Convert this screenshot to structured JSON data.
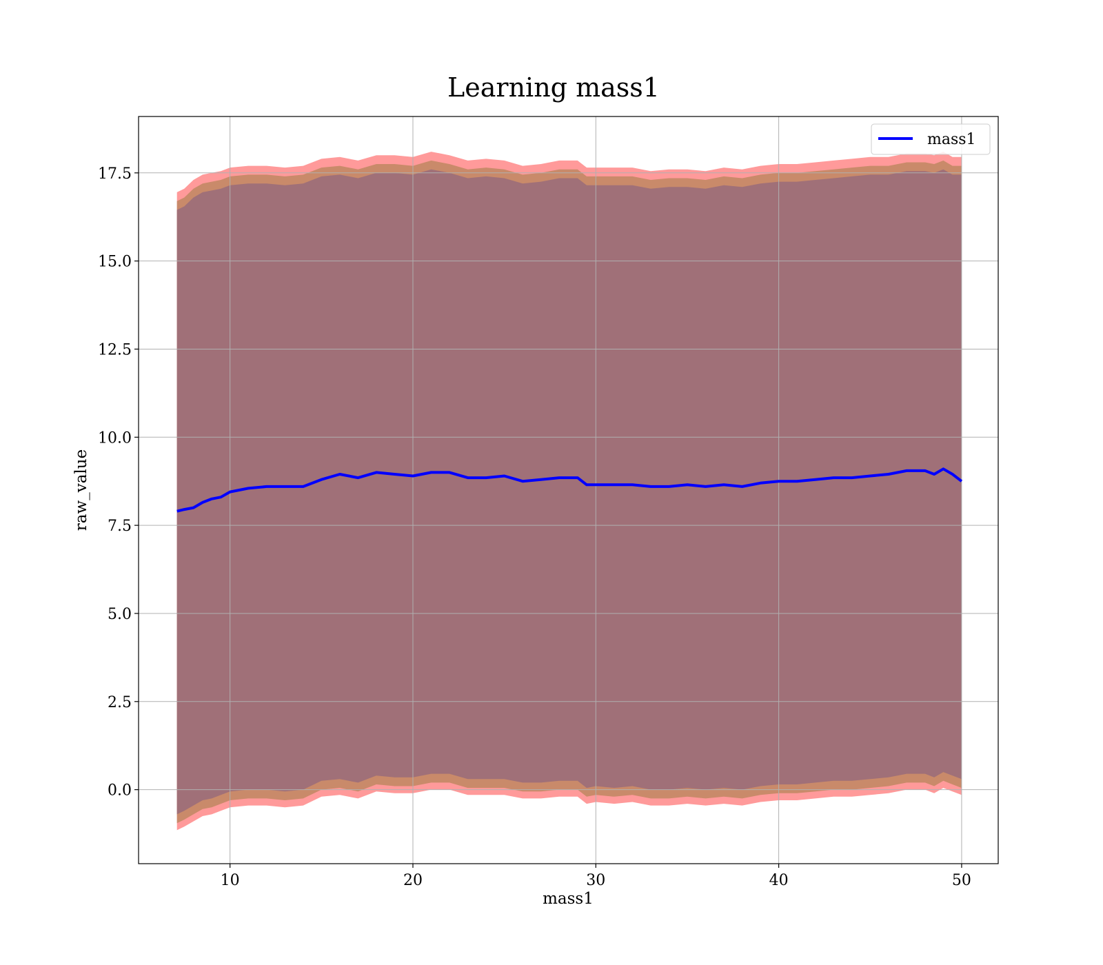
{
  "chart_data": {
    "type": "line",
    "title": "Learning mass1",
    "xlabel": "mass1",
    "ylabel": "raw_value",
    "xlim": [
      5,
      52
    ],
    "ylim": [
      -2.1,
      19.1
    ],
    "xticks": [
      10,
      20,
      30,
      40,
      50
    ],
    "xtick_labels": [
      "10",
      "20",
      "30",
      "40",
      "50"
    ],
    "yticks": [
      0.0,
      2.5,
      5.0,
      7.5,
      10.0,
      12.5,
      15.0,
      17.5
    ],
    "ytick_labels": [
      "0.0",
      "2.5",
      "5.0",
      "7.5",
      "10.0",
      "12.5",
      "15.0",
      "17.5"
    ],
    "grid": true,
    "legend": {
      "location": "upper right",
      "entries": [
        "mass1"
      ]
    },
    "series": [
      {
        "name": "mass1",
        "color": "#0000ff",
        "x": [
          7.1,
          7.5,
          8.0,
          8.5,
          9.0,
          9.5,
          10.0,
          11.0,
          12.0,
          13.0,
          14.0,
          15.0,
          16.0,
          17.0,
          18.0,
          19.0,
          20.0,
          21.0,
          22.0,
          23.0,
          24.0,
          25.0,
          26.0,
          27.0,
          28.0,
          29.0,
          29.5,
          30.0,
          31.0,
          32.0,
          33.0,
          34.0,
          35.0,
          36.0,
          37.0,
          38.0,
          39.0,
          40.0,
          41.0,
          42.0,
          43.0,
          44.0,
          45.0,
          46.0,
          47.0,
          48.0,
          48.5,
          49.0,
          49.5,
          50.0
        ],
        "y": [
          7.9,
          7.95,
          8.0,
          8.15,
          8.25,
          8.3,
          8.45,
          8.55,
          8.6,
          8.6,
          8.6,
          8.8,
          8.95,
          8.85,
          9.0,
          8.95,
          8.9,
          9.0,
          9.0,
          8.85,
          8.85,
          8.9,
          8.75,
          8.8,
          8.85,
          8.85,
          8.65,
          8.65,
          8.65,
          8.65,
          8.6,
          8.6,
          8.65,
          8.6,
          8.65,
          8.6,
          8.7,
          8.75,
          8.75,
          8.8,
          8.85,
          8.85,
          8.9,
          8.95,
          9.05,
          9.05,
          8.95,
          9.1,
          8.95,
          8.75
        ]
      }
    ],
    "bands": [
      {
        "color": "#ff9a9a",
        "upper": [
          16.95,
          17.05,
          17.3,
          17.45,
          17.5,
          17.55,
          17.65,
          17.7,
          17.7,
          17.65,
          17.7,
          17.9,
          17.95,
          17.85,
          18.0,
          18.0,
          17.95,
          18.1,
          18.0,
          17.85,
          17.9,
          17.85,
          17.7,
          17.75,
          17.85,
          17.85,
          17.65,
          17.65,
          17.65,
          17.65,
          17.55,
          17.6,
          17.6,
          17.55,
          17.65,
          17.6,
          17.7,
          17.75,
          17.75,
          17.8,
          17.85,
          17.9,
          17.95,
          17.95,
          18.05,
          18.05,
          18.0,
          18.1,
          17.95,
          17.95
        ],
        "lower": [
          -1.15,
          -1.05,
          -0.9,
          -0.75,
          -0.7,
          -0.6,
          -0.5,
          -0.45,
          -0.45,
          -0.5,
          -0.45,
          -0.2,
          -0.15,
          -0.25,
          -0.05,
          -0.1,
          -0.1,
          0.0,
          0.0,
          -0.15,
          -0.15,
          -0.15,
          -0.25,
          -0.25,
          -0.2,
          -0.2,
          -0.4,
          -0.35,
          -0.4,
          -0.35,
          -0.45,
          -0.45,
          -0.4,
          -0.45,
          -0.4,
          -0.45,
          -0.35,
          -0.3,
          -0.3,
          -0.25,
          -0.2,
          -0.2,
          -0.15,
          -0.1,
          0.0,
          0.0,
          -0.1,
          0.05,
          -0.05,
          -0.15
        ]
      },
      {
        "color": "#c98a6a",
        "upper": [
          16.7,
          16.8,
          17.05,
          17.2,
          17.25,
          17.3,
          17.4,
          17.45,
          17.45,
          17.4,
          17.45,
          17.65,
          17.7,
          17.6,
          17.75,
          17.75,
          17.7,
          17.85,
          17.75,
          17.6,
          17.65,
          17.6,
          17.45,
          17.5,
          17.6,
          17.6,
          17.4,
          17.4,
          17.4,
          17.4,
          17.3,
          17.35,
          17.35,
          17.3,
          17.4,
          17.35,
          17.45,
          17.5,
          17.5,
          17.55,
          17.6,
          17.65,
          17.7,
          17.7,
          17.8,
          17.8,
          17.75,
          17.85,
          17.7,
          17.7
        ],
        "lower": [
          -0.95,
          -0.85,
          -0.7,
          -0.55,
          -0.5,
          -0.4,
          -0.3,
          -0.25,
          -0.25,
          -0.3,
          -0.25,
          0.0,
          0.05,
          -0.05,
          0.15,
          0.1,
          0.1,
          0.2,
          0.2,
          0.05,
          0.05,
          0.05,
          -0.05,
          -0.05,
          0.0,
          0.0,
          -0.2,
          -0.15,
          -0.2,
          -0.15,
          -0.25,
          -0.25,
          -0.2,
          -0.25,
          -0.2,
          -0.25,
          -0.15,
          -0.1,
          -0.1,
          -0.05,
          0.0,
          0.0,
          0.05,
          0.1,
          0.2,
          0.2,
          0.1,
          0.25,
          0.15,
          0.05
        ]
      },
      {
        "color": "#a07078",
        "upper": [
          16.45,
          16.55,
          16.8,
          16.95,
          17.0,
          17.05,
          17.15,
          17.2,
          17.2,
          17.15,
          17.2,
          17.4,
          17.45,
          17.35,
          17.5,
          17.5,
          17.45,
          17.6,
          17.5,
          17.35,
          17.4,
          17.35,
          17.2,
          17.25,
          17.35,
          17.35,
          17.15,
          17.15,
          17.15,
          17.15,
          17.05,
          17.1,
          17.1,
          17.05,
          17.15,
          17.1,
          17.2,
          17.25,
          17.25,
          17.3,
          17.35,
          17.4,
          17.45,
          17.45,
          17.55,
          17.55,
          17.5,
          17.6,
          17.45,
          17.45
        ],
        "lower": [
          -0.7,
          -0.6,
          -0.45,
          -0.3,
          -0.25,
          -0.15,
          -0.05,
          0.0,
          0.0,
          -0.05,
          0.0,
          0.25,
          0.3,
          0.2,
          0.4,
          0.35,
          0.35,
          0.45,
          0.45,
          0.3,
          0.3,
          0.3,
          0.2,
          0.2,
          0.25,
          0.25,
          0.05,
          0.1,
          0.05,
          0.1,
          0.0,
          0.0,
          0.05,
          0.0,
          0.05,
          0.0,
          0.1,
          0.15,
          0.15,
          0.2,
          0.25,
          0.25,
          0.3,
          0.35,
          0.45,
          0.45,
          0.35,
          0.5,
          0.4,
          0.3
        ]
      }
    ]
  }
}
